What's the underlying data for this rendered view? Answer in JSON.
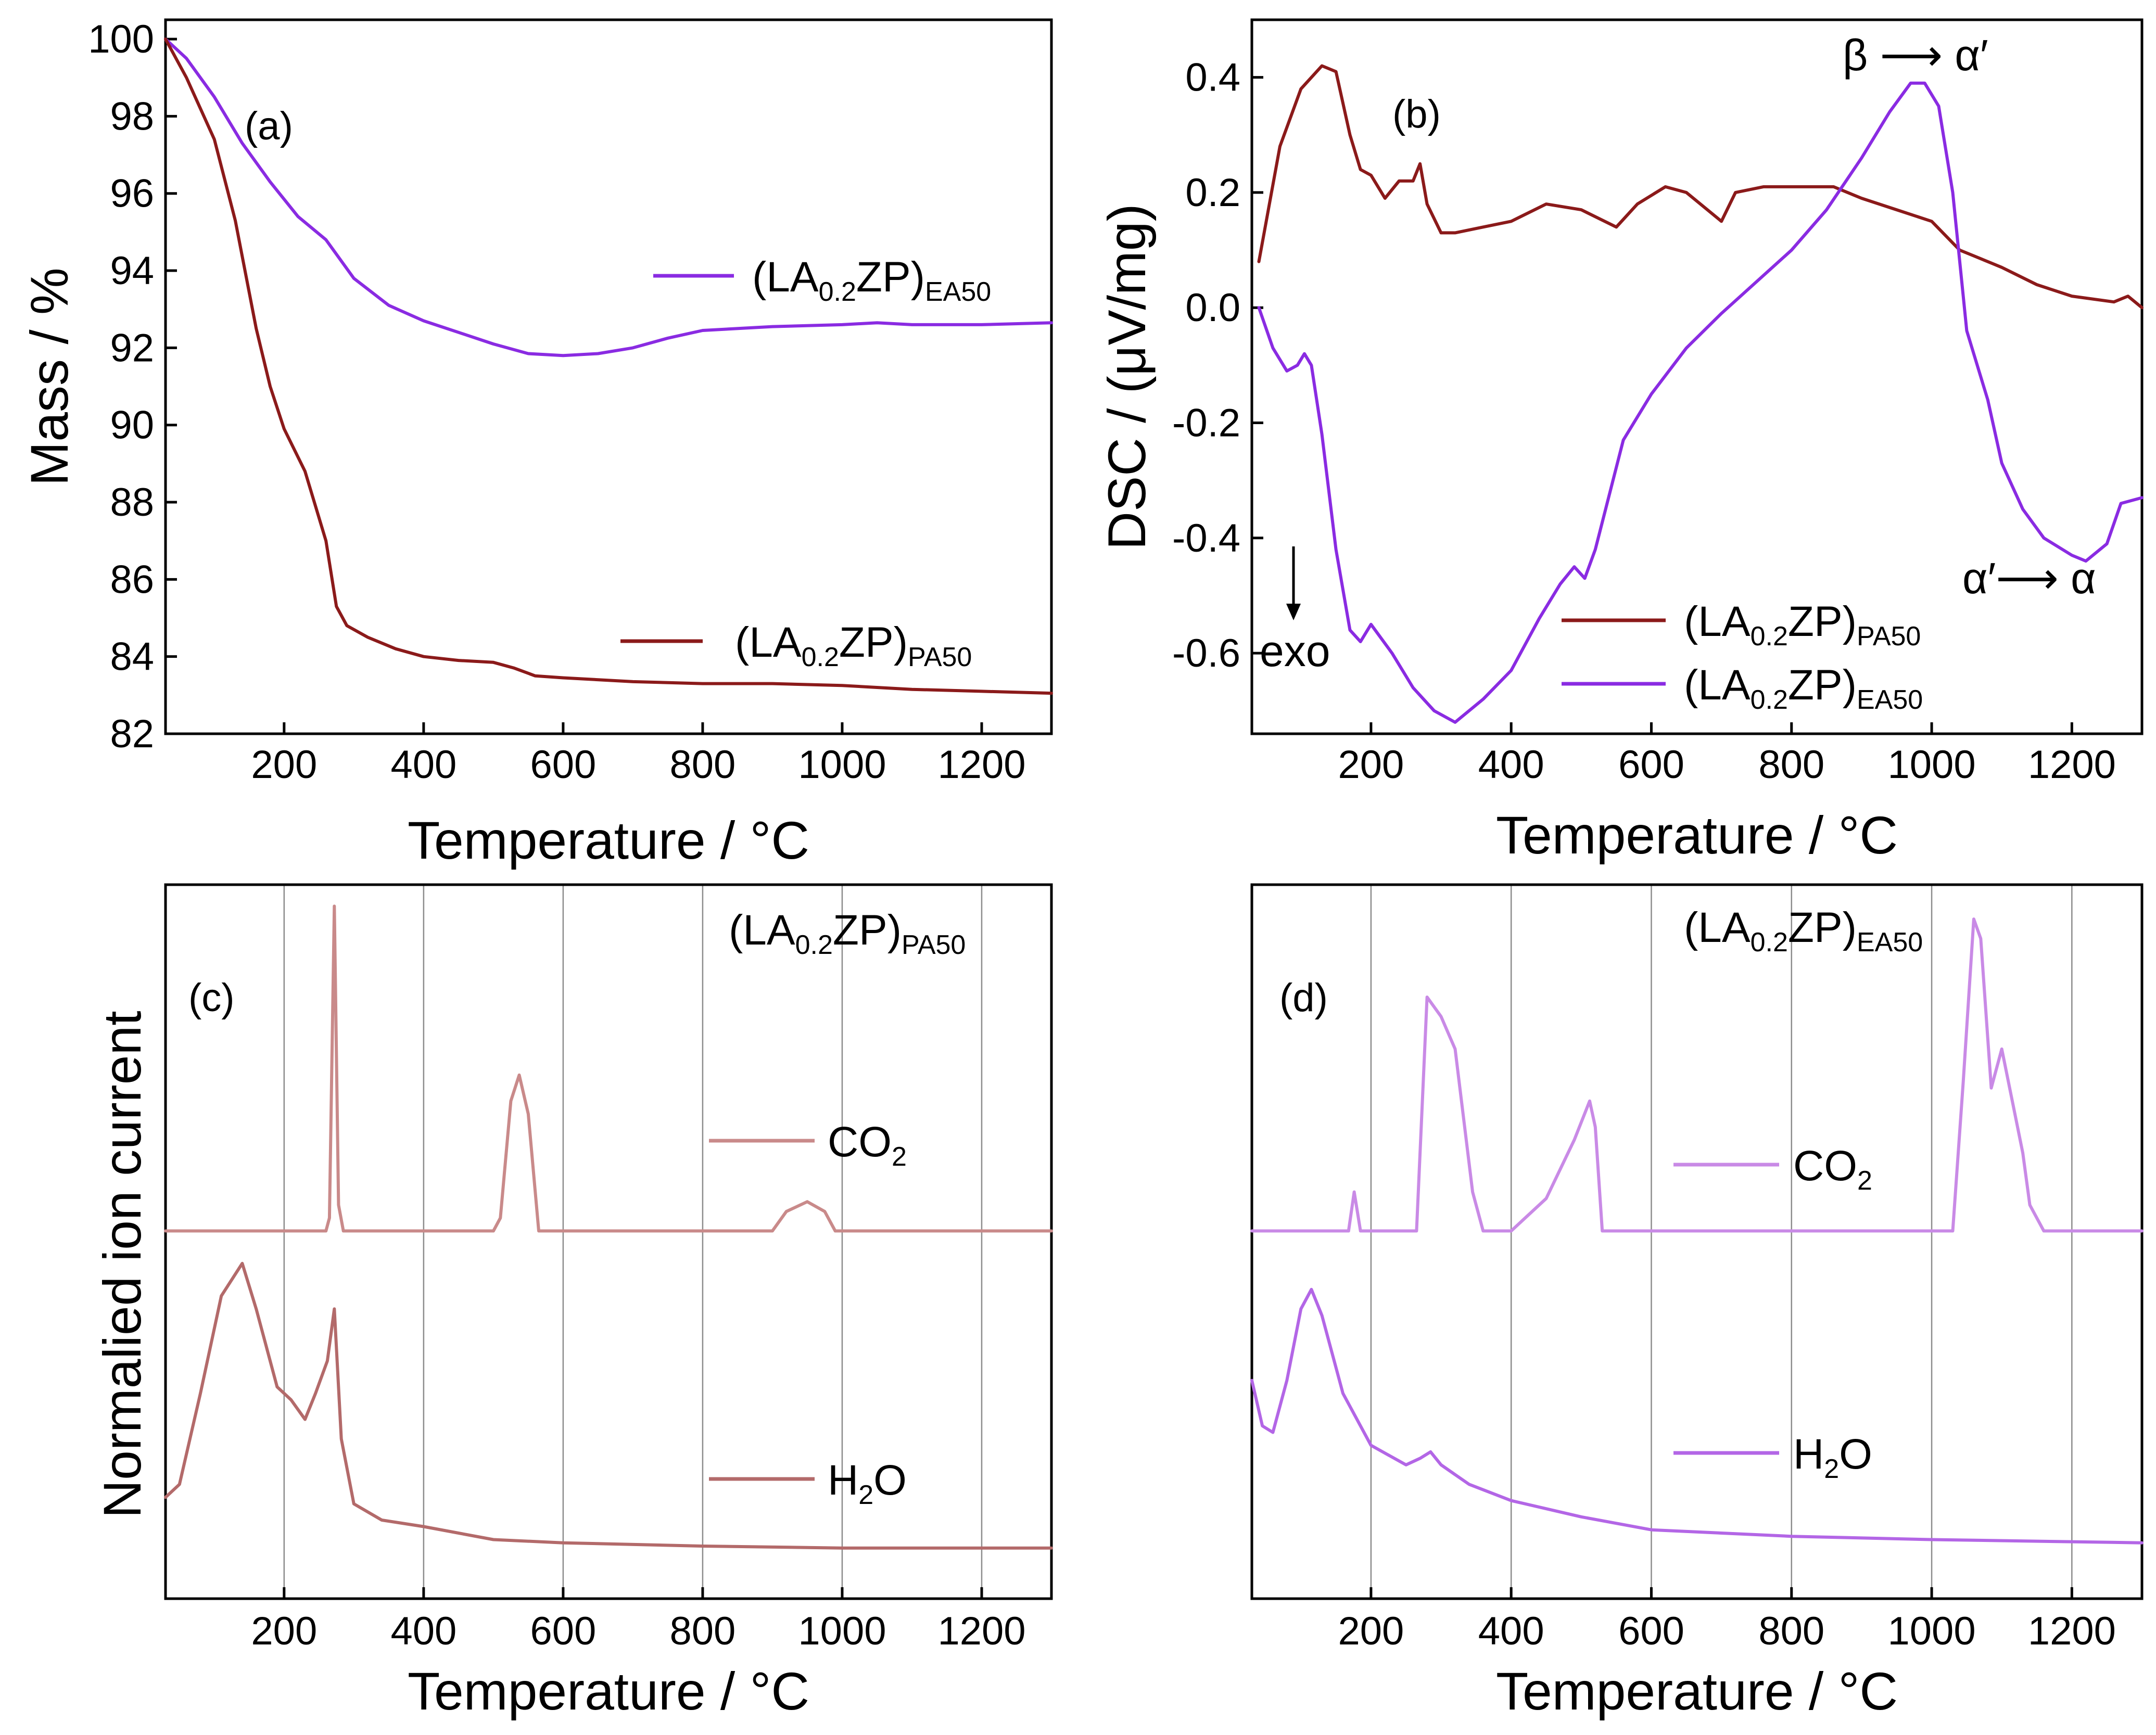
{
  "chart_data": [
    {
      "panel": "a",
      "type": "line",
      "label": "(a)",
      "xlabel": "Temperature / °C",
      "ylabel": "Mass / %",
      "xlim": [
        30,
        1300
      ],
      "ylim": [
        82,
        100.5
      ],
      "xticks": [
        200,
        400,
        600,
        800,
        1000,
        1200
      ],
      "yticks": [
        82,
        84,
        86,
        88,
        90,
        92,
        94,
        96,
        98,
        100
      ],
      "grid": false,
      "series": [
        {
          "name": "(LA0.2ZP)EA50",
          "legend": {
            "base": "(LA",
            "sub1": "0.2",
            "mid": "ZP)",
            "sub2": "EA50"
          },
          "color": "#8a2be2",
          "x": [
            30,
            60,
            100,
            140,
            180,
            220,
            260,
            300,
            350,
            400,
            450,
            500,
            550,
            600,
            650,
            700,
            750,
            800,
            900,
            1000,
            1050,
            1100,
            1200,
            1300
          ],
          "y": [
            100,
            99.5,
            98.5,
            97.3,
            96.3,
            95.4,
            94.8,
            93.8,
            93.1,
            92.7,
            92.4,
            92.1,
            91.85,
            91.8,
            91.85,
            92.0,
            92.25,
            92.45,
            92.55,
            92.6,
            92.65,
            92.6,
            92.6,
            92.65
          ]
        },
        {
          "name": "(LA0.2ZP)PA50",
          "legend": {
            "base": "(LA",
            "sub1": "0.2",
            "mid": "ZP)",
            "sub2": "PA50"
          },
          "color": "#8b1a1a",
          "x": [
            30,
            60,
            100,
            130,
            160,
            180,
            200,
            230,
            260,
            275,
            290,
            320,
            360,
            400,
            450,
            500,
            530,
            560,
            600,
            700,
            800,
            900,
            1000,
            1100,
            1200,
            1300
          ],
          "y": [
            100,
            99.0,
            97.4,
            95.3,
            92.5,
            91.0,
            89.9,
            88.8,
            87.0,
            85.3,
            84.8,
            84.5,
            84.2,
            84.0,
            83.9,
            83.85,
            83.7,
            83.5,
            83.45,
            83.35,
            83.3,
            83.3,
            83.25,
            83.15,
            83.1,
            83.05
          ]
        }
      ]
    },
    {
      "panel": "b",
      "type": "line",
      "label": "(b)",
      "xlabel": "Temperature / °C",
      "ylabel": "DSC / (μV/mg)",
      "xlim": [
        30,
        1300
      ],
      "ylim": [
        -0.74,
        0.5
      ],
      "xticks": [
        200,
        400,
        600,
        800,
        1000,
        1200
      ],
      "yticks": [
        -0.6,
        -0.4,
        -0.2,
        0.0,
        0.2,
        0.4
      ],
      "ytick_labels": [
        "-0.6",
        "-0.4",
        "-0.2",
        "0.0",
        "0.2",
        "0.4"
      ],
      "grid": false,
      "annotations": {
        "transition1": "β ⟶ α′",
        "transition2": "α′⟶ α",
        "exo": "exo"
      },
      "series": [
        {
          "name": "(LA0.2ZP)PA50",
          "legend": {
            "base": "(LA",
            "sub1": "0.2",
            "mid": "ZP)",
            "sub2": "PA50"
          },
          "color": "#8b1a1a",
          "x": [
            40,
            70,
            100,
            130,
            150,
            170,
            185,
            200,
            220,
            240,
            260,
            270,
            280,
            300,
            320,
            360,
            400,
            450,
            500,
            550,
            580,
            620,
            650,
            700,
            720,
            760,
            820,
            860,
            900,
            950,
            1000,
            1040,
            1060,
            1100,
            1150,
            1200,
            1260,
            1280,
            1300
          ],
          "y": [
            0.08,
            0.28,
            0.38,
            0.42,
            0.41,
            0.3,
            0.24,
            0.23,
            0.19,
            0.22,
            0.22,
            0.25,
            0.18,
            0.13,
            0.13,
            0.14,
            0.15,
            0.18,
            0.17,
            0.14,
            0.18,
            0.21,
            0.2,
            0.15,
            0.2,
            0.21,
            0.21,
            0.21,
            0.19,
            0.17,
            0.15,
            0.1,
            0.09,
            0.07,
            0.04,
            0.02,
            0.01,
            0.02,
            0.0
          ]
        },
        {
          "name": "(LA0.2ZP)EA50",
          "legend": {
            "base": "(LA",
            "sub1": "0.2",
            "mid": "ZP)",
            "sub2": "EA50"
          },
          "color": "#8a2be2",
          "x": [
            40,
            60,
            80,
            95,
            105,
            115,
            130,
            150,
            170,
            185,
            200,
            230,
            260,
            290,
            320,
            360,
            400,
            440,
            470,
            490,
            505,
            520,
            560,
            600,
            650,
            700,
            800,
            850,
            900,
            940,
            970,
            990,
            1010,
            1030,
            1050,
            1080,
            1100,
            1130,
            1160,
            1200,
            1220,
            1250,
            1270,
            1300
          ],
          "y": [
            0.0,
            -0.07,
            -0.11,
            -0.1,
            -0.08,
            -0.1,
            -0.22,
            -0.42,
            -0.56,
            -0.58,
            -0.55,
            -0.6,
            -0.66,
            -0.7,
            -0.72,
            -0.68,
            -0.63,
            -0.54,
            -0.48,
            -0.45,
            -0.47,
            -0.42,
            -0.23,
            -0.15,
            -0.07,
            -0.01,
            0.1,
            0.17,
            0.26,
            0.34,
            0.39,
            0.39,
            0.35,
            0.2,
            -0.04,
            -0.16,
            -0.27,
            -0.35,
            -0.4,
            -0.43,
            -0.44,
            -0.41,
            -0.34,
            -0.33
          ]
        }
      ]
    },
    {
      "panel": "c",
      "type": "line",
      "label": "(c)",
      "title": {
        "base": "(LA",
        "sub1": "0.2",
        "mid": "ZP)",
        "sub2": "PA50"
      },
      "xlabel": "Temperature / °C",
      "ylabel": "Normalied ion current",
      "xlim": [
        30,
        1300
      ],
      "ylim": [
        0,
        1
      ],
      "xticks": [
        200,
        400,
        600,
        800,
        1000,
        1200
      ],
      "grid": true,
      "series": [
        {
          "name": "CO2",
          "legend": {
            "base": "CO",
            "sub1": "2"
          },
          "color": "#c98a8a",
          "x": [
            30,
            260,
            265,
            272,
            278,
            285,
            500,
            510,
            525,
            537,
            550,
            565,
            900,
            920,
            950,
            975,
            990,
            1300
          ],
          "y": [
            0.5,
            0.5,
            0.52,
            1.0,
            0.54,
            0.5,
            0.5,
            0.52,
            0.7,
            0.74,
            0.68,
            0.5,
            0.5,
            0.53,
            0.545,
            0.53,
            0.5,
            0.5
          ]
        },
        {
          "name": "H2O",
          "legend": {
            "base": "H",
            "sub1": "2",
            "mid": "O"
          },
          "color": "#b36a6a",
          "x": [
            30,
            50,
            80,
            110,
            140,
            160,
            190,
            210,
            230,
            245,
            262,
            272,
            282,
            300,
            340,
            400,
            500,
            600,
            800,
            1000,
            1300
          ],
          "y": [
            0.09,
            0.11,
            0.25,
            0.4,
            0.45,
            0.38,
            0.26,
            0.24,
            0.21,
            0.25,
            0.3,
            0.38,
            0.18,
            0.08,
            0.055,
            0.045,
            0.025,
            0.02,
            0.015,
            0.012,
            0.012
          ]
        }
      ]
    },
    {
      "panel": "d",
      "type": "line",
      "label": "(d)",
      "title": {
        "base": "(LA",
        "sub1": "0.2",
        "mid": "ZP)",
        "sub2": "EA50"
      },
      "xlabel": "Temperature / °C",
      "ylabel": "",
      "xlim": [
        30,
        1300
      ],
      "ylim": [
        0,
        1
      ],
      "xticks": [
        200,
        400,
        600,
        800,
        1000,
        1200
      ],
      "grid": true,
      "series": [
        {
          "name": "CO2",
          "legend": {
            "base": "CO",
            "sub1": "2"
          },
          "color": "#c98ae6",
          "x": [
            30,
            168,
            176,
            185,
            250,
            265,
            280,
            300,
            320,
            345,
            360,
            400,
            450,
            490,
            512,
            520,
            530,
            1030,
            1045,
            1060,
            1070,
            1085,
            1100,
            1115,
            1130,
            1140,
            1150,
            1160,
            1300
          ],
          "y": [
            0.5,
            0.5,
            0.56,
            0.5,
            0.5,
            0.5,
            0.86,
            0.83,
            0.78,
            0.56,
            0.5,
            0.5,
            0.55,
            0.64,
            0.7,
            0.66,
            0.5,
            0.5,
            0.73,
            0.98,
            0.95,
            0.72,
            0.78,
            0.7,
            0.62,
            0.54,
            0.52,
            0.5,
            0.5
          ]
        },
        {
          "name": "H2O",
          "legend": {
            "base": "H",
            "sub1": "2",
            "mid": "O"
          },
          "color": "#b366e6",
          "x": [
            30,
            45,
            60,
            80,
            100,
            115,
            130,
            160,
            200,
            250,
            270,
            285,
            300,
            340,
            400,
            500,
            600,
            800,
            1000,
            1300
          ],
          "y": [
            0.27,
            0.2,
            0.19,
            0.27,
            0.38,
            0.41,
            0.37,
            0.25,
            0.17,
            0.14,
            0.15,
            0.16,
            0.14,
            0.11,
            0.085,
            0.06,
            0.04,
            0.03,
            0.025,
            0.02
          ]
        }
      ]
    }
  ]
}
